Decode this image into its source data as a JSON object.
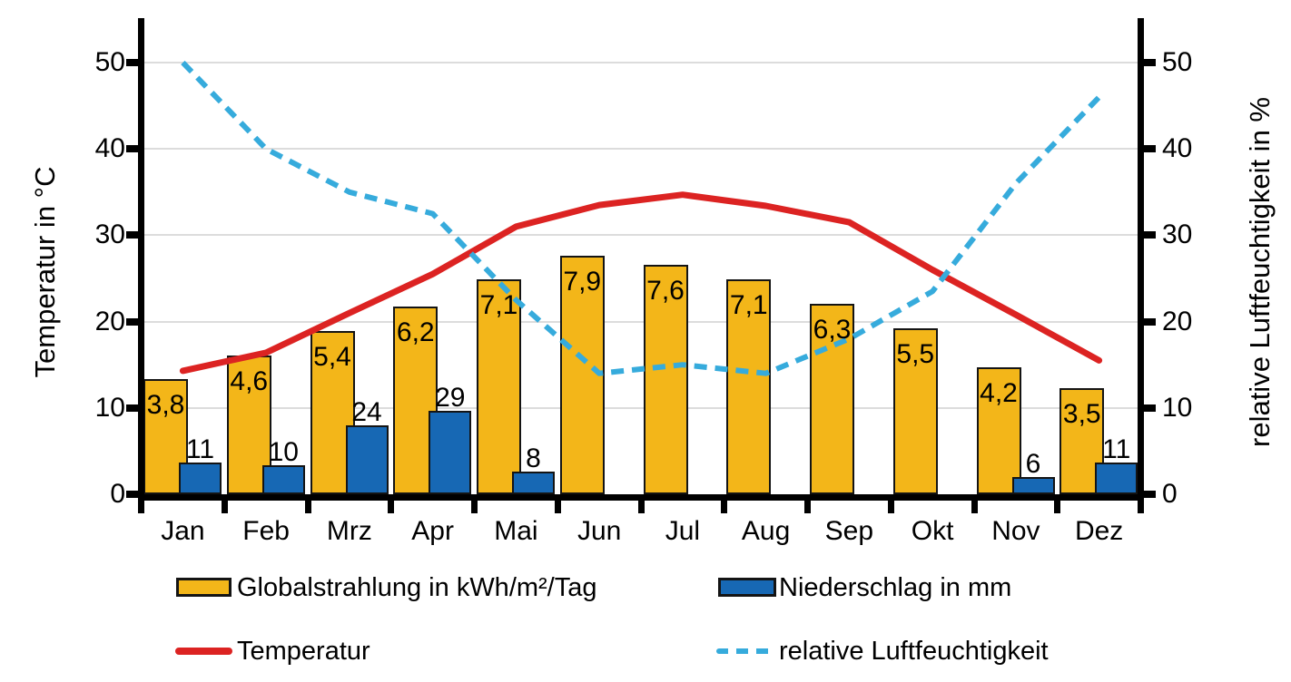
{
  "chart_data": {
    "type": "combo",
    "title": "",
    "categories": [
      "Jan",
      "Feb",
      "Mrz",
      "Apr",
      "Mai",
      "Jun",
      "Jul",
      "Aug",
      "Sep",
      "Okt",
      "Nov",
      "Dez"
    ],
    "left_axis": {
      "title": "Temperatur in °C",
      "ticks": [
        0,
        10,
        20,
        30,
        40,
        50
      ],
      "range": [
        0,
        55
      ]
    },
    "right_axis": {
      "title": "relative Luftfeuchtigkeit in %",
      "ticks": [
        0,
        10,
        20,
        30,
        40,
        50
      ],
      "range": [
        0,
        55
      ]
    },
    "grid": "horizontal-light-gray",
    "legend_position": "bottom-two-columns",
    "series": [
      {
        "name": "Globalstrahlung in kWh/m²/Tag",
        "type": "bar",
        "color": "#F3B619",
        "values": [
          3.8,
          4.6,
          5.4,
          6.2,
          7.1,
          7.9,
          7.6,
          7.1,
          6.3,
          5.5,
          4.2,
          3.5
        ],
        "labels": [
          "3,8",
          "4,6",
          "5,4",
          "6,2",
          "7,1",
          "7,9",
          "7,6",
          "7,1",
          "6,3",
          "5,5",
          "4,2",
          "3,5"
        ],
        "label_placement": "inside-top",
        "axis_plot_scale": 3.5
      },
      {
        "name": "Niederschlag in mm",
        "type": "bar",
        "color": "#1768B4",
        "values": [
          11,
          10,
          24,
          29,
          8,
          0,
          0,
          0,
          0,
          0,
          6,
          11
        ],
        "labels": [
          "11",
          "10",
          "24",
          "29",
          "8",
          "",
          "",
          "",
          "",
          "",
          "6",
          "11"
        ],
        "label_placement": "above",
        "axis_plot_scale": 0.33333
      },
      {
        "name": "Temperatur",
        "type": "line",
        "style": "solid",
        "color": "#DC2322",
        "values": [
          14.3,
          16.4,
          21.0,
          25.5,
          31.0,
          33.5,
          34.7,
          33.4,
          31.5,
          26.0,
          20.8,
          15.5
        ]
      },
      {
        "name": "relative Luftfeuchtigkeit",
        "type": "line",
        "style": "dashed",
        "color": "#36ABDC",
        "values": [
          50,
          40,
          35,
          32.5,
          22.5,
          14,
          15,
          14,
          18,
          23.5,
          36,
          46
        ]
      }
    ]
  },
  "legend": {
    "items": [
      {
        "label": "Globalstrahlung in kWh/m²/Tag",
        "swatch": "bar",
        "color": "#F3B619"
      },
      {
        "label": "Niederschlag in mm",
        "swatch": "bar",
        "color": "#1768B4"
      },
      {
        "label": "Temperatur",
        "swatch": "line",
        "color": "#DC2322"
      },
      {
        "label": "relative Luftfeuchtigkeit",
        "swatch": "dashed-line",
        "color": "#36ABDC"
      }
    ]
  }
}
